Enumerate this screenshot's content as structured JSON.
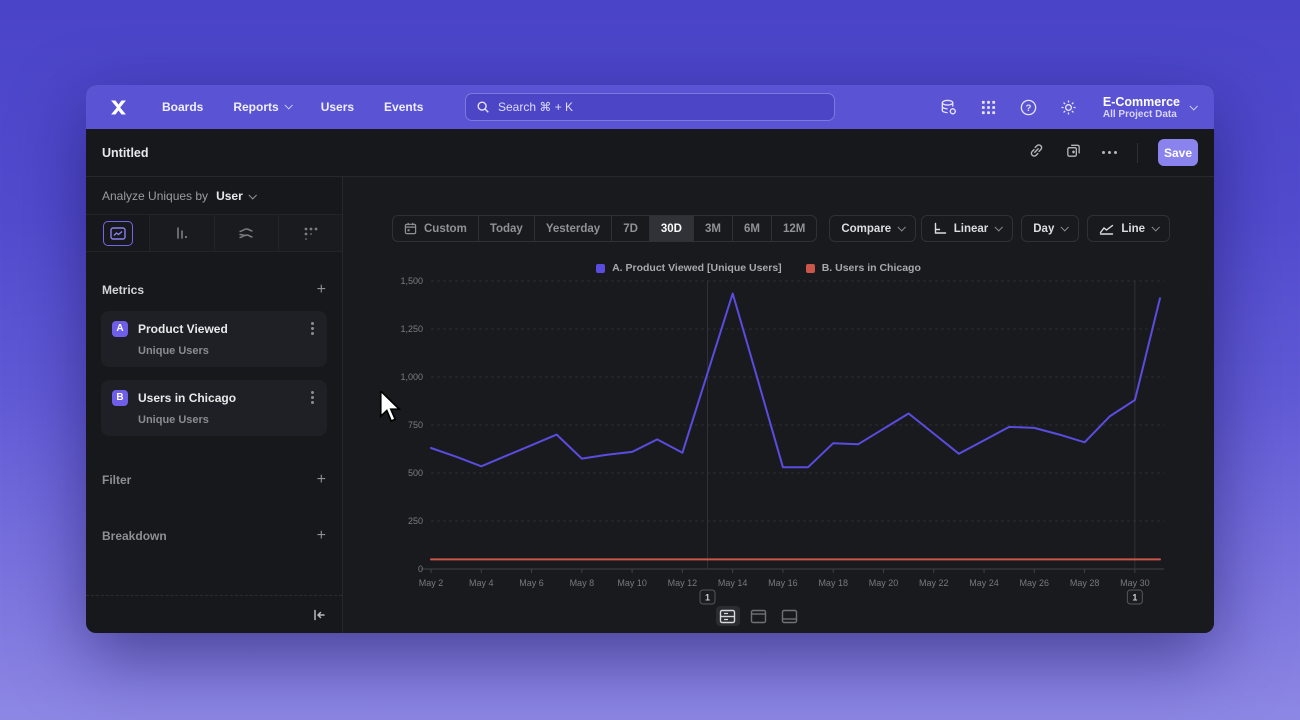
{
  "nav": {
    "items": [
      {
        "label": "Boards"
      },
      {
        "label": "Reports"
      },
      {
        "label": "Users"
      },
      {
        "label": "Events"
      }
    ],
    "search_placeholder": "Search  ⌘ + K",
    "project": {
      "name": "E-Commerce",
      "subtitle": "All Project Data"
    }
  },
  "header": {
    "title": "Untitled",
    "save_label": "Save"
  },
  "sidebar": {
    "analyze": {
      "prefix": "Analyze Uniques by",
      "value": "User"
    },
    "metrics": {
      "title": "Metrics",
      "add_label": "+",
      "items": [
        {
          "badge": "A",
          "name": "Product Viewed",
          "subtitle": "Unique Users"
        },
        {
          "badge": "B",
          "name": "Users in Chicago",
          "subtitle": "Unique Users"
        }
      ]
    },
    "filter": {
      "title": "Filter",
      "add_label": "+"
    },
    "breakdown": {
      "title": "Breakdown",
      "add_label": "+"
    }
  },
  "toolbar": {
    "ranges": [
      "Custom",
      "Today",
      "Yesterday",
      "7D",
      "30D",
      "3M",
      "6M",
      "12M"
    ],
    "selected_range": "30D",
    "compare_label": "Compare",
    "scale_label": "Linear",
    "granularity_label": "Day",
    "chart_type_label": "Line"
  },
  "chart_data": {
    "type": "line",
    "title": "",
    "x": [
      "May 2",
      "May 3",
      "May 4",
      "May 5",
      "May 6",
      "May 7",
      "May 8",
      "May 9",
      "May 10",
      "May 11",
      "May 12",
      "May 13",
      "May 14",
      "May 15",
      "May 16",
      "May 17",
      "May 18",
      "May 19",
      "May 20",
      "May 21",
      "May 22",
      "May 23",
      "May 24",
      "May 25",
      "May 26",
      "May 27",
      "May 28",
      "May 29",
      "May 30",
      "May 31"
    ],
    "xtick_step": 2,
    "series": [
      {
        "name": "A. Product Viewed [Unique Users]",
        "color": "#5b4ce0",
        "values": [
          630,
          585,
          535,
          590,
          645,
          700,
          575,
          595,
          610,
          675,
          605,
          1020,
          1435,
          985,
          530,
          530,
          655,
          650,
          730,
          810,
          705,
          600,
          670,
          740,
          735,
          700,
          660,
          795,
          880,
          1410
        ]
      },
      {
        "name": "B. Users in Chicago",
        "color": "#ca564b",
        "values": [
          50,
          50,
          50,
          50,
          50,
          50,
          50,
          50,
          50,
          50,
          50,
          50,
          50,
          50,
          50,
          50,
          50,
          50,
          50,
          50,
          50,
          50,
          50,
          50,
          50,
          50,
          50,
          50,
          50,
          50
        ]
      }
    ],
    "ylim": [
      0,
      1500
    ],
    "yticks": [
      {
        "v": 0,
        "label": "0"
      },
      {
        "v": 250,
        "label": "250"
      },
      {
        "v": 500,
        "label": "500"
      },
      {
        "v": 750,
        "label": "750"
      },
      {
        "v": 1000,
        "label": "1,000"
      },
      {
        "v": 1250,
        "label": "1,250"
      },
      {
        "v": 1500,
        "label": "1,500"
      }
    ],
    "grid": "dashed-horizontal",
    "legend_position": "top-center",
    "annotations": [
      {
        "label": "1",
        "x_index": 11
      },
      {
        "label": "1",
        "x_index": 28
      }
    ]
  }
}
